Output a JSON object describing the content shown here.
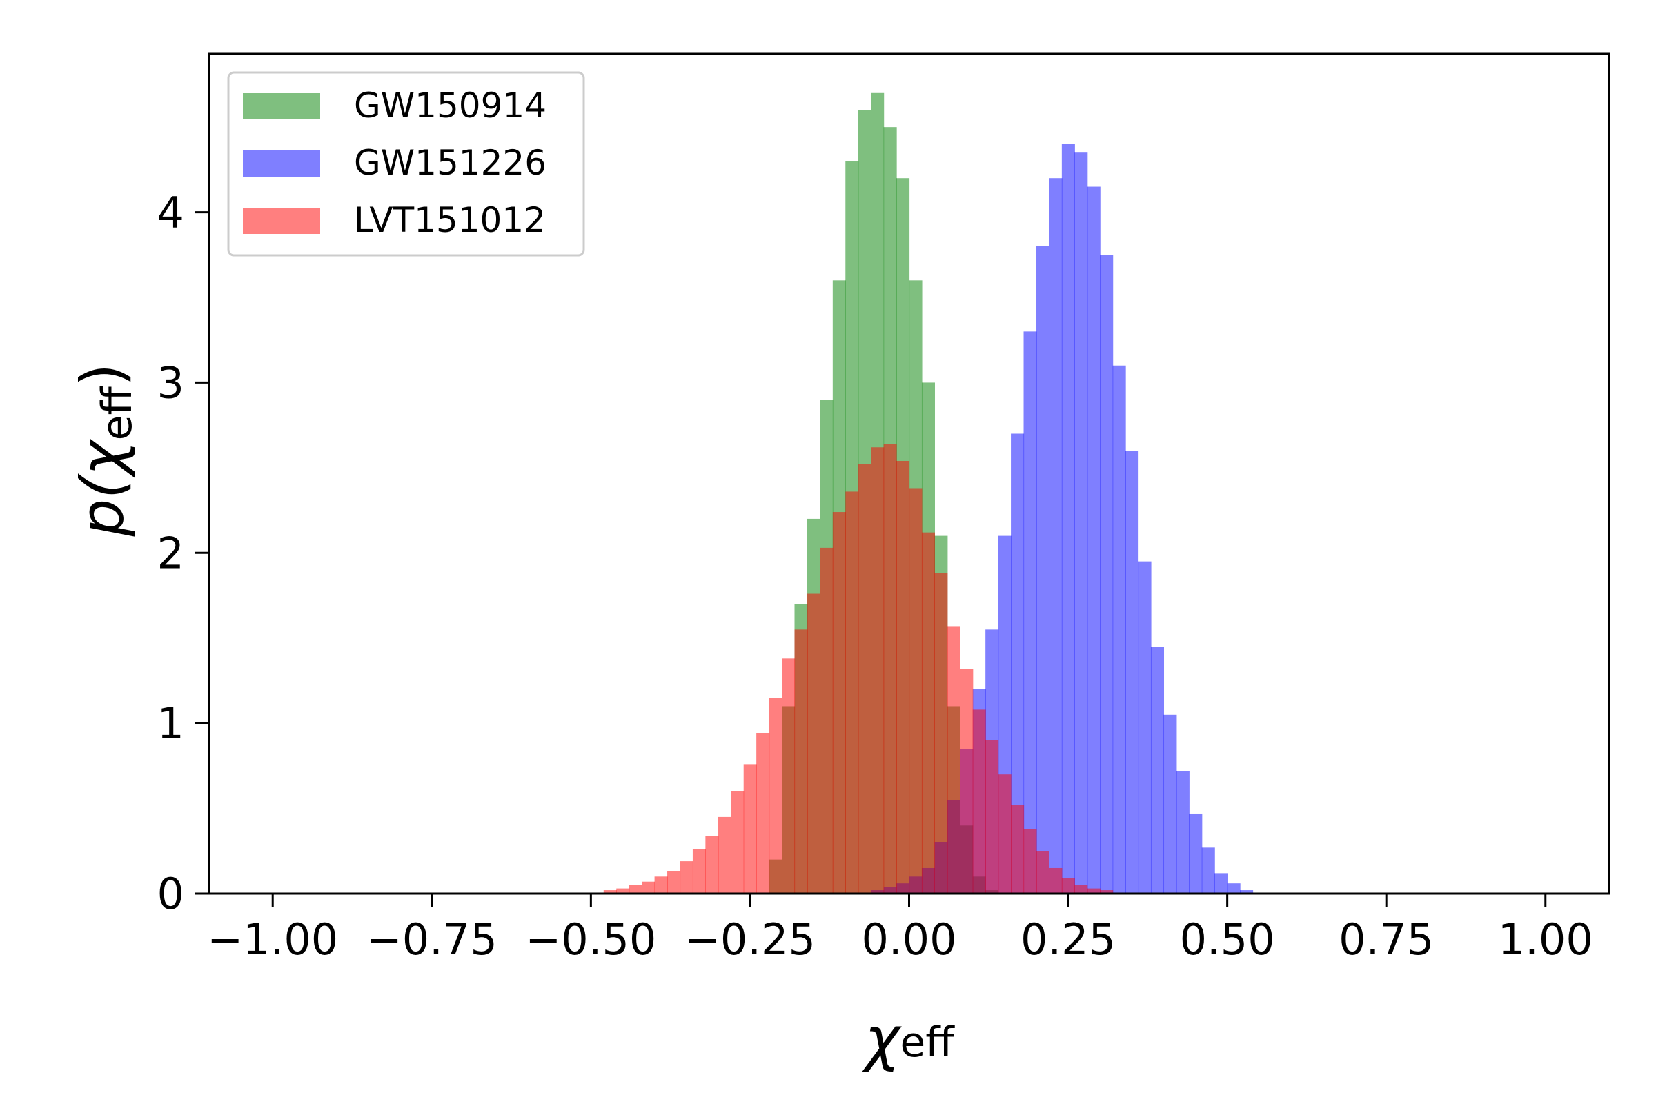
{
  "chart_data": {
    "type": "histogram",
    "xlabel_symbol": "χ",
    "xlabel_sub": "eff",
    "ylabel_prefix": "p(",
    "ylabel_symbol": "χ",
    "ylabel_sub": "eff",
    "ylabel_suffix": ")",
    "xlim": [
      -1.1,
      1.1
    ],
    "ylim": [
      0,
      4.93
    ],
    "xticks": [
      -1.0,
      -0.75,
      -0.5,
      -0.25,
      0.0,
      0.25,
      0.5,
      0.75,
      1.0
    ],
    "xtick_labels": [
      "−1.00",
      "−0.75",
      "−0.50",
      "−0.25",
      "0.00",
      "0.25",
      "0.50",
      "0.75",
      "1.00"
    ],
    "yticks": [
      0,
      1,
      2,
      3,
      4
    ],
    "ytick_labels": [
      "0",
      "1",
      "2",
      "3",
      "4"
    ],
    "grid": false,
    "legend_position": "top-left",
    "bin_width": 0.02,
    "series": [
      {
        "name": "GW150914",
        "color": "#008000",
        "alpha": 0.5,
        "bin_start": -0.22,
        "values": [
          0.2,
          1.1,
          1.7,
          2.2,
          2.9,
          3.6,
          4.3,
          4.6,
          4.7,
          4.5,
          4.2,
          3.6,
          3.0,
          2.1,
          1.1,
          0.4,
          0.1,
          0.02
        ]
      },
      {
        "name": "GW151226",
        "color": "#0000ff",
        "alpha": 0.5,
        "bin_start": -0.06,
        "values": [
          0.02,
          0.04,
          0.06,
          0.1,
          0.15,
          0.3,
          0.55,
          0.85,
          1.2,
          1.55,
          2.1,
          2.7,
          3.3,
          3.8,
          4.2,
          4.4,
          4.35,
          4.15,
          3.75,
          3.1,
          2.6,
          1.95,
          1.45,
          1.05,
          0.72,
          0.47,
          0.27,
          0.12,
          0.06,
          0.02
        ]
      },
      {
        "name": "LVT151012",
        "color": "#ff0000",
        "alpha": 0.5,
        "bin_start": -0.48,
        "values": [
          0.02,
          0.03,
          0.05,
          0.07,
          0.1,
          0.13,
          0.19,
          0.26,
          0.34,
          0.45,
          0.6,
          0.76,
          0.94,
          1.15,
          1.38,
          1.55,
          1.76,
          2.03,
          2.24,
          2.36,
          2.52,
          2.62,
          2.64,
          2.54,
          2.38,
          2.12,
          1.88,
          1.57,
          1.32,
          1.08,
          0.9,
          0.7,
          0.52,
          0.38,
          0.25,
          0.15,
          0.09,
          0.05,
          0.03,
          0.02
        ]
      }
    ]
  }
}
